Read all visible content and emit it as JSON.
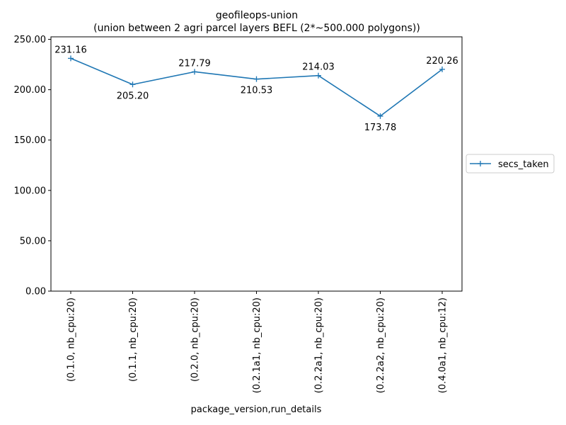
{
  "chart_data": {
    "type": "line",
    "title": "geofileops-union",
    "subtitle": "(union between 2 agri parcel layers BEFL (2*~500.000 polygons))",
    "xlabel": "package_version,run_details",
    "ylabel": "",
    "categories": [
      "(0.1.0, nb_cpu:20)",
      "(0.1.1, nb_cpu:20)",
      "(0.2.0, nb_cpu:20)",
      "(0.2.1a1, nb_cpu:20)",
      "(0.2.2a1, nb_cpu:20)",
      "(0.2.2a2, nb_cpu:20)",
      "(0.4.0a1, nb_cpu:12)"
    ],
    "series": [
      {
        "name": "secs_taken",
        "values": [
          231.16,
          205.2,
          217.79,
          210.53,
          214.03,
          173.78,
          220.26
        ],
        "data_labels": [
          "231.16",
          "205.20",
          "217.79",
          "210.53",
          "214.03",
          "173.78",
          "220.26"
        ],
        "label_position": [
          "above",
          "below",
          "above",
          "below",
          "above",
          "below",
          "above"
        ],
        "marker": "plus",
        "color": "#1f77b4"
      }
    ],
    "ylim": [
      0,
      252.5
    ],
    "yticks": [
      0,
      50,
      100,
      150,
      200,
      250
    ],
    "ytick_labels": [
      "0.00",
      "50.00",
      "100.00",
      "150.00",
      "200.00",
      "250.00"
    ],
    "grid": false,
    "legend_placement": "right, outside plot area"
  }
}
